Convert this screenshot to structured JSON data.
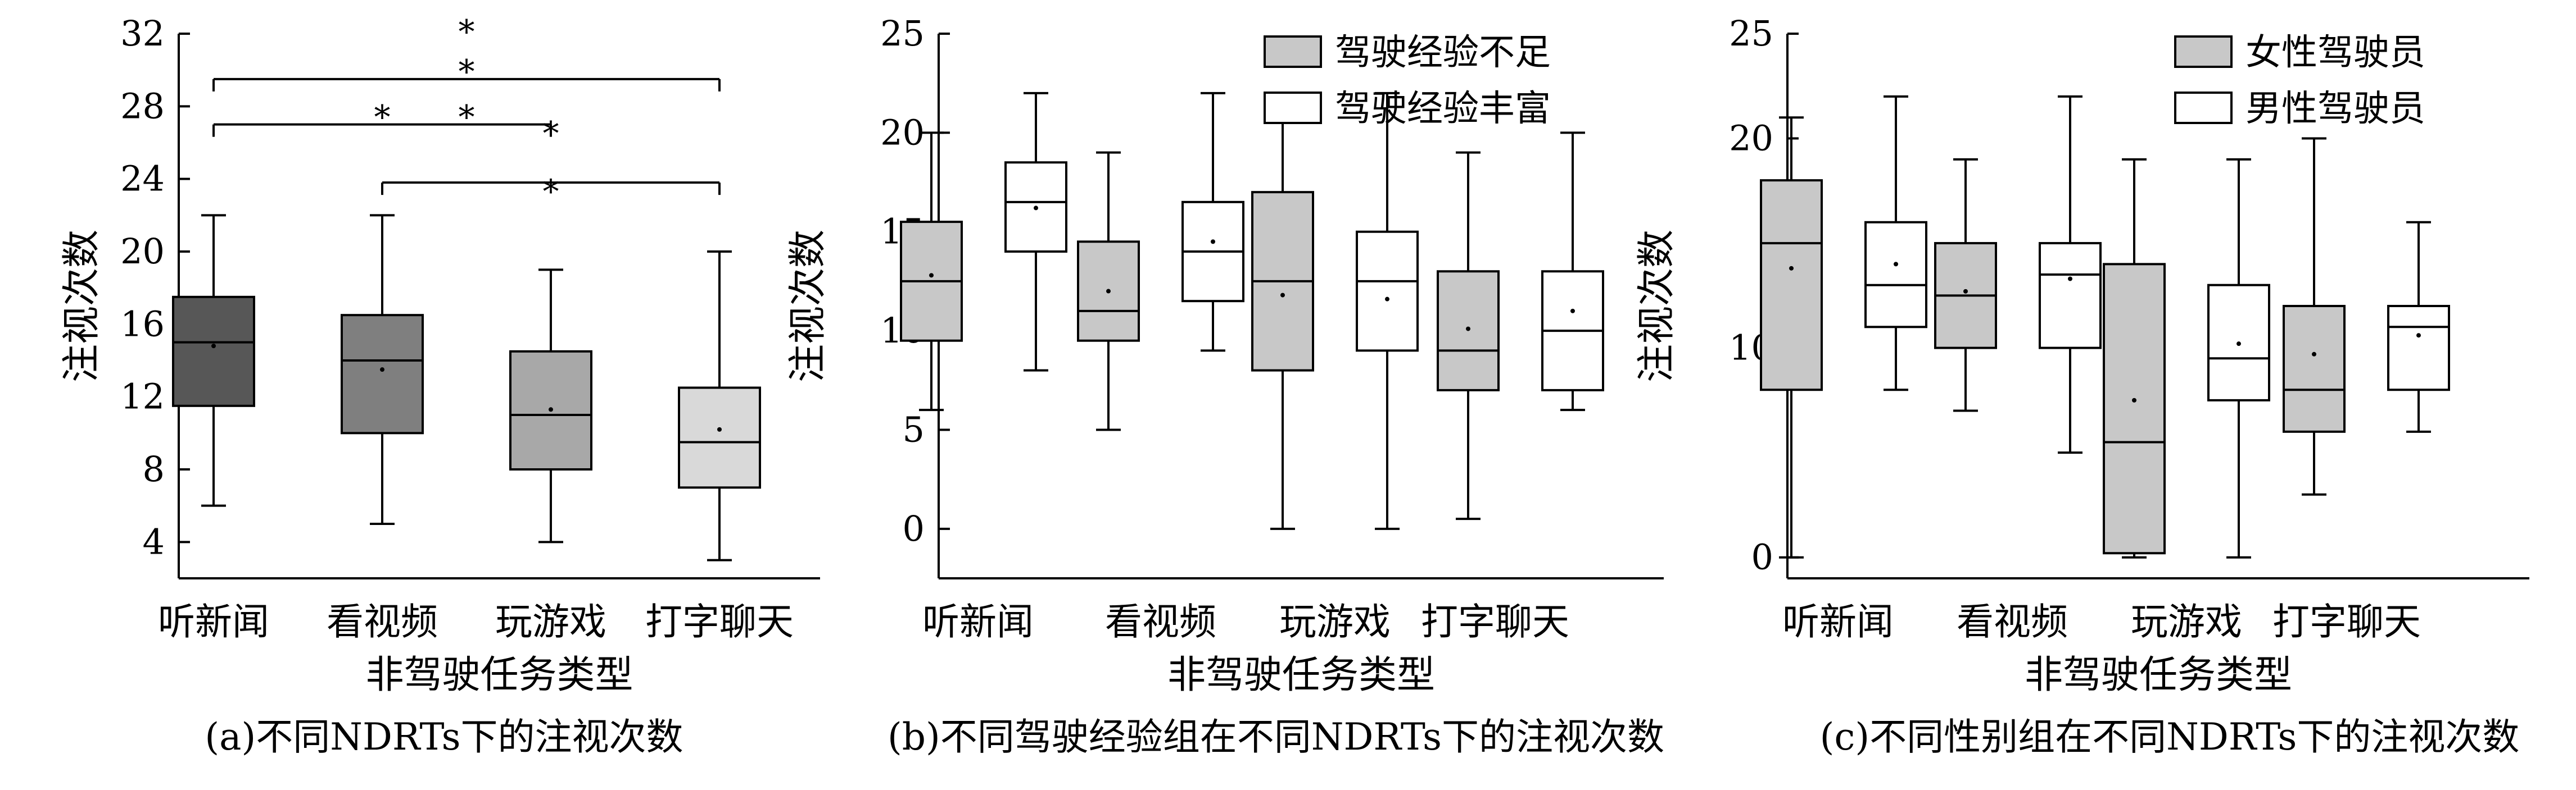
{
  "chart_data": [
    {
      "type": "box",
      "caption": "(a)不同NDRTs下的注视次数",
      "xlabel": "非驾驶任务类型",
      "ylabel": "注视次数",
      "ylim": [
        2,
        32
      ],
      "yticks": [
        4,
        8,
        12,
        16,
        20,
        24,
        28,
        32
      ],
      "categories": [
        "听新闻",
        "看视频",
        "玩游戏",
        "打字聊天"
      ],
      "series": [
        {
          "colors": [
            "#575757",
            "#7f7f7f",
            "#a8a8a8",
            "#d9d9d9"
          ],
          "boxes": [
            {
              "min": 6,
              "q1": 11.5,
              "median": 15,
              "q3": 17.5,
              "max": 22,
              "mean": 14.8
            },
            {
              "min": 5,
              "q1": 10,
              "median": 14,
              "q3": 16.5,
              "max": 22,
              "mean": 13.5
            },
            {
              "min": 4,
              "q1": 8,
              "median": 11,
              "q3": 14.5,
              "max": 19,
              "mean": 11.3
            },
            {
              "min": 3,
              "q1": 7,
              "median": 9.5,
              "q3": 12.5,
              "max": 20,
              "mean": 10.2
            }
          ]
        }
      ],
      "significance": [
        {
          "from": 0,
          "to": 3,
          "y": 29.5,
          "marks": [
            {
              "text": "*",
              "at": 1.5,
              "y": 30.4
            },
            {
              "text": "*",
              "at": 1.5,
              "y": 32.6
            },
            {
              "text": "*",
              "at": 1.5,
              "y": 35.2
            }
          ]
        },
        {
          "from": 0,
          "to": 2,
          "y": 27.0,
          "marks": [
            {
              "text": "*",
              "at": 1.0,
              "y": 27.9
            },
            {
              "text": "*",
              "at": 1.5,
              "y": 27.9
            },
            {
              "text": "*",
              "at": 2.0,
              "y": 27.0
            }
          ]
        },
        {
          "from": 1,
          "to": 3,
          "y": 23.8,
          "marks": [
            {
              "text": "*",
              "at": 2.0,
              "y": 23.8
            }
          ]
        }
      ]
    },
    {
      "type": "box",
      "caption": "(b)不同驾驶经验组在不同NDRTs下的注视次数",
      "xlabel": "非驾驶任务类型",
      "ylabel": "注视次数",
      "ylim": [
        -2.5,
        25
      ],
      "yticks": [
        0,
        5,
        10,
        15,
        20,
        25
      ],
      "categories": [
        "听新闻",
        "看视频",
        "玩游戏",
        "打字聊天"
      ],
      "legend_position": "top-right",
      "series": [
        {
          "name": "驾驶经验不足",
          "color": "#c8c8c8",
          "boxes": [
            {
              "min": 6,
              "q1": 9.5,
              "median": 12.5,
              "q3": 15.5,
              "max": 20,
              "mean": 12.8
            },
            {
              "min": 5,
              "q1": 9.5,
              "median": 11,
              "q3": 14.5,
              "max": 19,
              "mean": 12
            },
            {
              "min": 0,
              "q1": 8,
              "median": 12.5,
              "q3": 17,
              "max": 22,
              "mean": 11.8
            },
            {
              "min": 0.5,
              "q1": 7,
              "median": 9,
              "q3": 13,
              "max": 19,
              "mean": 10.1
            }
          ]
        },
        {
          "name": "驾驶经验丰富",
          "color": "#ffffff",
          "boxes": [
            {
              "min": 8,
              "q1": 14,
              "median": 16.5,
              "q3": 18.5,
              "max": 22,
              "mean": 16.2
            },
            {
              "min": 9,
              "q1": 11.5,
              "median": 14,
              "q3": 16.5,
              "max": 22,
              "mean": 14.5
            },
            {
              "min": 0,
              "q1": 9,
              "median": 12.5,
              "q3": 15,
              "max": 22,
              "mean": 11.6
            },
            {
              "min": 6,
              "q1": 7,
              "median": 10,
              "q3": 13,
              "max": 20,
              "mean": 11
            }
          ]
        }
      ]
    },
    {
      "type": "box",
      "caption": "(c)不同性别组在不同NDRTs下的注视次数",
      "xlabel": "非驾驶任务类型",
      "ylabel": "注视次数",
      "ylim": [
        -1,
        25
      ],
      "yticks": [
        0,
        10,
        20,
        25
      ],
      "categories": [
        "听新闻",
        "看视频",
        "玩游戏",
        "打字聊天"
      ],
      "legend_position": "top-right",
      "series": [
        {
          "name": "女性驾驶员",
          "color": "#c8c8c8",
          "boxes": [
            {
              "min": 0,
              "q1": 8,
              "median": 15,
              "q3": 18,
              "max": 21,
              "mean": 13.8
            },
            {
              "min": 7,
              "q1": 10,
              "median": 12.5,
              "q3": 15,
              "max": 19,
              "mean": 12.7
            },
            {
              "min": 0,
              "q1": 0.2,
              "median": 5.5,
              "q3": 14,
              "max": 19,
              "mean": 7.5
            },
            {
              "min": 3,
              "q1": 6,
              "median": 8,
              "q3": 12,
              "max": 20,
              "mean": 9.7
            }
          ]
        },
        {
          "name": "男性驾驶员",
          "color": "#ffffff",
          "boxes": [
            {
              "min": 8,
              "q1": 11,
              "median": 13,
              "q3": 16,
              "max": 22,
              "mean": 14
            },
            {
              "min": 5,
              "q1": 10,
              "median": 13.5,
              "q3": 15,
              "max": 22,
              "mean": 13.3
            },
            {
              "min": 0,
              "q1": 7.5,
              "median": 9.5,
              "q3": 13,
              "max": 19,
              "mean": 10.2
            },
            {
              "min": 6,
              "q1": 8,
              "median": 11,
              "q3": 12,
              "max": 16,
              "mean": 10.6
            }
          ]
        }
      ]
    }
  ]
}
